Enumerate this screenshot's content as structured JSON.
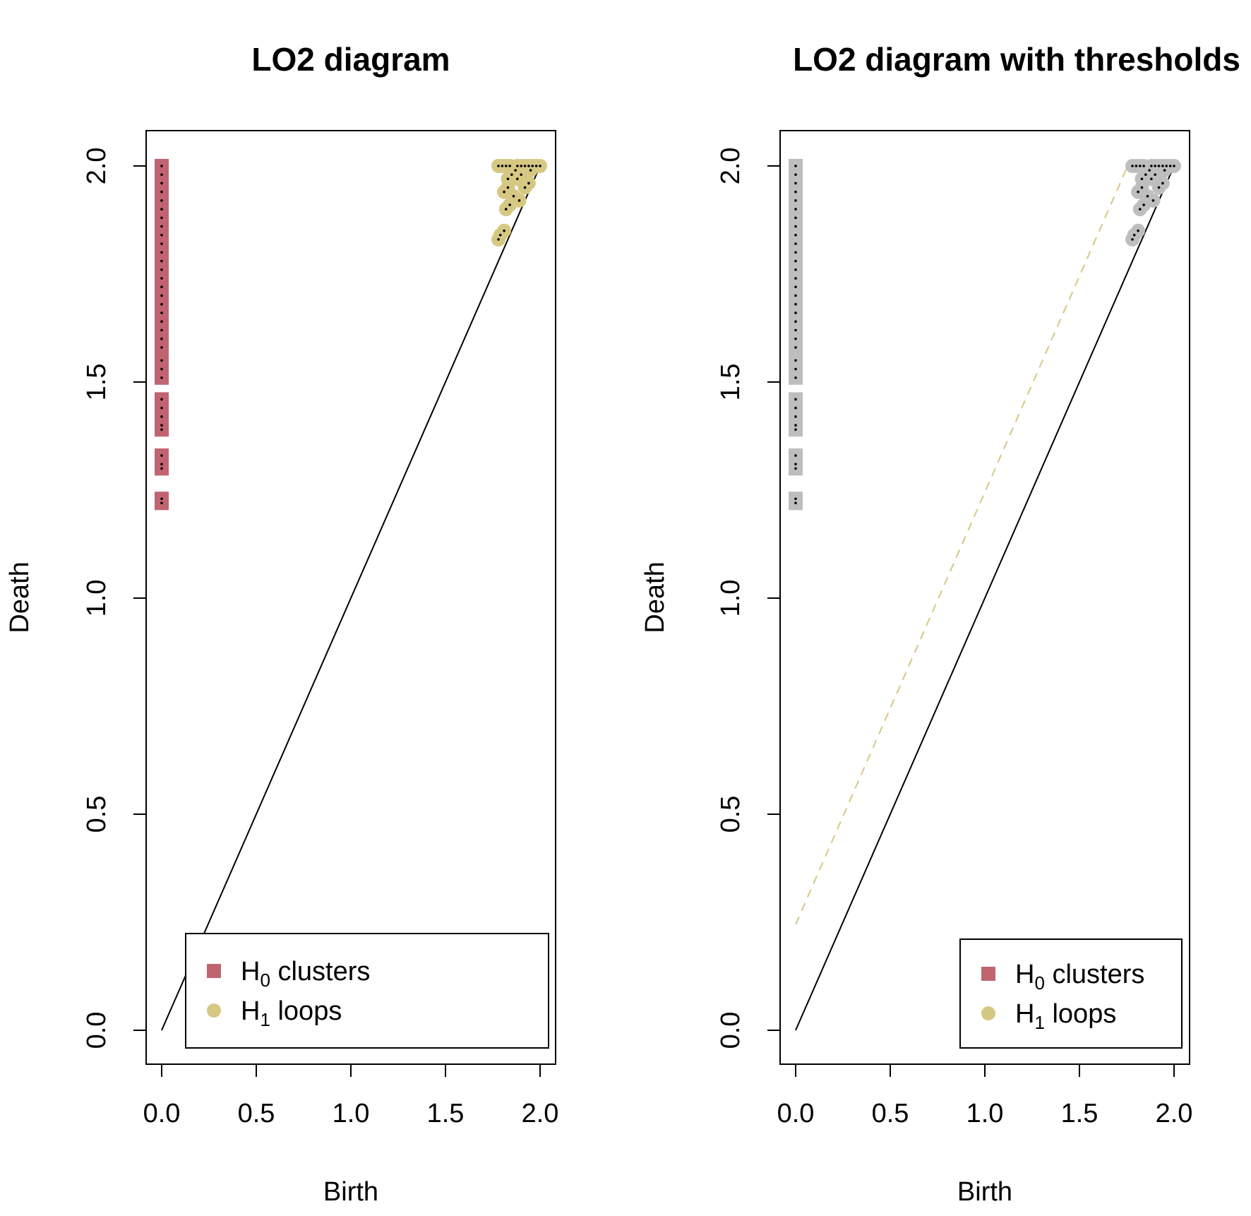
{
  "chart_data": [
    {
      "type": "scatter",
      "title": "LO2  diagram",
      "xlabel": "Birth",
      "ylabel": "Death",
      "xlim": [
        0,
        2
      ],
      "ylim": [
        0,
        2
      ],
      "xticks": [
        "0.0",
        "0.5",
        "1.0",
        "1.5",
        "2.0"
      ],
      "yticks": [
        "0.0",
        "0.5",
        "1.0",
        "1.5",
        "2.0"
      ],
      "grid": false,
      "diagonal": true,
      "threshold": null,
      "legend": {
        "position": "bottom-right",
        "entries": [
          {
            "symbol": "H",
            "subscript": "0",
            "label": "clusters",
            "marker": "square",
            "color": "#c06570"
          },
          {
            "symbol": "H",
            "subscript": "1",
            "label": "loops",
            "marker": "circle",
            "color": "#d6c882"
          }
        ]
      },
      "series": [
        {
          "name": "H0 clusters",
          "marker": "square",
          "color": "#c06570",
          "points": [
            [
              0,
              1.22
            ],
            [
              0,
              1.23
            ],
            [
              0,
              1.3
            ],
            [
              0,
              1.31
            ],
            [
              0,
              1.33
            ],
            [
              0,
              1.39
            ],
            [
              0,
              1.4
            ],
            [
              0,
              1.42
            ],
            [
              0,
              1.44
            ],
            [
              0,
              1.46
            ],
            [
              0,
              1.51
            ],
            [
              0,
              1.53
            ],
            [
              0,
              1.55
            ],
            [
              0,
              1.58
            ],
            [
              0,
              1.6
            ],
            [
              0,
              1.62
            ],
            [
              0,
              1.64
            ],
            [
              0,
              1.66
            ],
            [
              0,
              1.68
            ],
            [
              0,
              1.7
            ],
            [
              0,
              1.72
            ],
            [
              0,
              1.74
            ],
            [
              0,
              1.76
            ],
            [
              0,
              1.78
            ],
            [
              0,
              1.8
            ],
            [
              0,
              1.82
            ],
            [
              0,
              1.84
            ],
            [
              0,
              1.86
            ],
            [
              0,
              1.88
            ],
            [
              0,
              1.9
            ],
            [
              0,
              1.92
            ],
            [
              0,
              1.94
            ],
            [
              0,
              1.96
            ],
            [
              0,
              1.98
            ],
            [
              0,
              2.0
            ]
          ]
        },
        {
          "name": "H1 loops",
          "marker": "circle",
          "color": "#d6c882",
          "points": [
            [
              1.78,
              1.83
            ],
            [
              1.79,
              1.84
            ],
            [
              1.81,
              1.85
            ],
            [
              1.82,
              1.9
            ],
            [
              1.84,
              1.91
            ],
            [
              1.81,
              1.94
            ],
            [
              1.83,
              1.95
            ],
            [
              1.86,
              1.93
            ],
            [
              1.89,
              1.92
            ],
            [
              1.83,
              1.97
            ],
            [
              1.85,
              1.98
            ],
            [
              1.88,
              1.97
            ],
            [
              1.92,
              1.95
            ],
            [
              1.94,
              1.96
            ],
            [
              1.87,
              1.99
            ],
            [
              1.9,
              1.98
            ],
            [
              1.95,
              1.99
            ],
            [
              1.78,
              2.0
            ],
            [
              1.8,
              2.0
            ],
            [
              1.82,
              2.0
            ],
            [
              1.84,
              2.0
            ],
            [
              1.88,
              2.0
            ],
            [
              1.9,
              2.0
            ],
            [
              1.92,
              2.0
            ],
            [
              1.94,
              2.0
            ],
            [
              1.96,
              2.0
            ],
            [
              1.98,
              2.0
            ],
            [
              2.0,
              2.0
            ]
          ]
        }
      ]
    },
    {
      "type": "scatter",
      "title": "LO2  diagram with thresholds",
      "xlabel": "Birth",
      "ylabel": "Death",
      "xlim": [
        0,
        2
      ],
      "ylim": [
        0,
        2
      ],
      "xticks": [
        "0.0",
        "0.5",
        "1.0",
        "1.5",
        "2.0"
      ],
      "yticks": [
        "0.0",
        "0.5",
        "1.0",
        "1.5",
        "2.0"
      ],
      "grid": false,
      "diagonal": true,
      "threshold": {
        "offset": 0.245,
        "style": "dashed",
        "color": "#d6c882"
      },
      "legend": {
        "position": "bottom-right",
        "entries": [
          {
            "symbol": "H",
            "subscript": "0",
            "label": "clusters",
            "marker": "square",
            "color": "#c06570"
          },
          {
            "symbol": "H",
            "subscript": "1",
            "label": "loops",
            "marker": "circle",
            "color": "#d6c882"
          }
        ]
      },
      "series": [
        {
          "name": "H0 clusters",
          "marker": "square",
          "color": "#bebebe",
          "points": [
            [
              0,
              1.22
            ],
            [
              0,
              1.23
            ],
            [
              0,
              1.3
            ],
            [
              0,
              1.31
            ],
            [
              0,
              1.33
            ],
            [
              0,
              1.39
            ],
            [
              0,
              1.4
            ],
            [
              0,
              1.42
            ],
            [
              0,
              1.44
            ],
            [
              0,
              1.46
            ],
            [
              0,
              1.51
            ],
            [
              0,
              1.53
            ],
            [
              0,
              1.55
            ],
            [
              0,
              1.58
            ],
            [
              0,
              1.6
            ],
            [
              0,
              1.62
            ],
            [
              0,
              1.64
            ],
            [
              0,
              1.66
            ],
            [
              0,
              1.68
            ],
            [
              0,
              1.7
            ],
            [
              0,
              1.72
            ],
            [
              0,
              1.74
            ],
            [
              0,
              1.76
            ],
            [
              0,
              1.78
            ],
            [
              0,
              1.8
            ],
            [
              0,
              1.82
            ],
            [
              0,
              1.84
            ],
            [
              0,
              1.86
            ],
            [
              0,
              1.88
            ],
            [
              0,
              1.9
            ],
            [
              0,
              1.92
            ],
            [
              0,
              1.94
            ],
            [
              0,
              1.96
            ],
            [
              0,
              1.98
            ],
            [
              0,
              2.0
            ]
          ]
        },
        {
          "name": "H1 loops",
          "marker": "circle",
          "color": "#bebebe",
          "points": [
            [
              1.78,
              1.83
            ],
            [
              1.79,
              1.84
            ],
            [
              1.81,
              1.85
            ],
            [
              1.82,
              1.9
            ],
            [
              1.84,
              1.91
            ],
            [
              1.81,
              1.94
            ],
            [
              1.83,
              1.95
            ],
            [
              1.86,
              1.93
            ],
            [
              1.89,
              1.92
            ],
            [
              1.83,
              1.97
            ],
            [
              1.85,
              1.98
            ],
            [
              1.88,
              1.97
            ],
            [
              1.92,
              1.95
            ],
            [
              1.94,
              1.96
            ],
            [
              1.87,
              1.99
            ],
            [
              1.9,
              1.98
            ],
            [
              1.95,
              1.99
            ],
            [
              1.78,
              2.0
            ],
            [
              1.8,
              2.0
            ],
            [
              1.82,
              2.0
            ],
            [
              1.84,
              2.0
            ],
            [
              1.88,
              2.0
            ],
            [
              1.9,
              2.0
            ],
            [
              1.92,
              2.0
            ],
            [
              1.94,
              2.0
            ],
            [
              1.96,
              2.0
            ],
            [
              1.98,
              2.0
            ],
            [
              2.0,
              2.0
            ]
          ]
        }
      ]
    }
  ]
}
